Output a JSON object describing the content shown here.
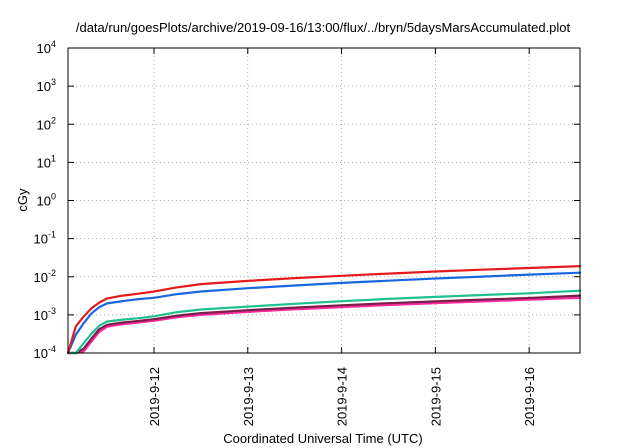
{
  "chart_data": {
    "type": "line",
    "title": "/data/run/goesPlots/archive/2019-09-16/13:00/flux/../bryn/5daysMarsAccumulated.plot",
    "xlabel": "Coordinated Universal Time (UTC)",
    "ylabel": "cGy",
    "y_scale": "log",
    "ylim": [
      0.0001,
      10000
    ],
    "xlim": [
      "2019-09-11 02:00",
      "2019-09-16 13:00"
    ],
    "grid": true,
    "y_ticks": [
      {
        "value": 0.0001,
        "base": "10",
        "exp": "-4"
      },
      {
        "value": 0.001,
        "base": "10",
        "exp": "-3"
      },
      {
        "value": 0.01,
        "base": "10",
        "exp": "-2"
      },
      {
        "value": 0.1,
        "base": "10",
        "exp": "-1"
      },
      {
        "value": 1,
        "base": "10",
        "exp": "0"
      },
      {
        "value": 10,
        "base": "10",
        "exp": "1"
      },
      {
        "value": 100,
        "base": "10",
        "exp": "2"
      },
      {
        "value": 1000,
        "base": "10",
        "exp": "3"
      },
      {
        "value": 10000,
        "base": "10",
        "exp": "4"
      }
    ],
    "x_ticks": [
      {
        "value": "2019-09-12 00:00",
        "label": "2019-9-12"
      },
      {
        "value": "2019-09-13 00:00",
        "label": "2019-9-13"
      },
      {
        "value": "2019-09-14 00:00",
        "label": "2019-9-14"
      },
      {
        "value": "2019-09-15 00:00",
        "label": "2019-9-15"
      },
      {
        "value": "2019-09-16 00:00",
        "label": "2019-9-16"
      }
    ],
    "x": [
      "2019-09-11 02:00",
      "2019-09-11 04:00",
      "2019-09-11 06:00",
      "2019-09-11 08:00",
      "2019-09-11 10:00",
      "2019-09-11 12:00",
      "2019-09-11 16:00",
      "2019-09-11 20:00",
      "2019-09-12 00:00",
      "2019-09-12 06:00",
      "2019-09-12 12:00",
      "2019-09-13 00:00",
      "2019-09-13 12:00",
      "2019-09-14 00:00",
      "2019-09-14 12:00",
      "2019-09-15 00:00",
      "2019-09-15 12:00",
      "2019-09-16 00:00",
      "2019-09-16 13:00"
    ],
    "series": [
      {
        "color": "#e41a1c",
        "values": [
          0.0001,
          0.0005,
          0.0009,
          0.0015,
          0.0021,
          0.0027,
          0.0032,
          0.0036,
          0.0041,
          0.0053,
          0.0064,
          0.0078,
          0.0092,
          0.0106,
          0.0121,
          0.0137,
          0.0153,
          0.017,
          0.019
        ]
      },
      {
        "color": "#1a66e0",
        "values": [
          0.0001,
          0.0003,
          0.0006,
          0.0011,
          0.0016,
          0.002,
          0.0023,
          0.0026,
          0.0028,
          0.0035,
          0.0041,
          0.005,
          0.0059,
          0.0069,
          0.0079,
          0.009,
          0.0101,
          0.0114,
          0.0128
        ]
      },
      {
        "color": "#20c090",
        "values": [
          0.0001,
          0.0001,
          0.00018,
          0.00032,
          0.00052,
          0.00067,
          0.00075,
          0.00082,
          0.00092,
          0.00118,
          0.00138,
          0.00165,
          0.00195,
          0.00228,
          0.00262,
          0.00297,
          0.00332,
          0.00368,
          0.0043
        ]
      },
      {
        "color": "#7a1f4a",
        "values": [
          0.0001,
          0.0001,
          0.00013,
          0.00024,
          0.00042,
          0.00055,
          0.00063,
          0.00069,
          0.00077,
          0.00096,
          0.00111,
          0.00133,
          0.00155,
          0.00178,
          0.00202,
          0.00226,
          0.00251,
          0.00277,
          0.0032
        ]
      },
      {
        "color": "#ff2aa0",
        "values": [
          0.0001,
          0.0001,
          0.00011,
          0.0002,
          0.00036,
          0.00049,
          0.00057,
          0.00063,
          0.0007,
          0.00087,
          0.001,
          0.0012,
          0.0014,
          0.0016,
          0.00182,
          0.00204,
          0.00226,
          0.0025,
          0.0028
        ]
      }
    ]
  }
}
